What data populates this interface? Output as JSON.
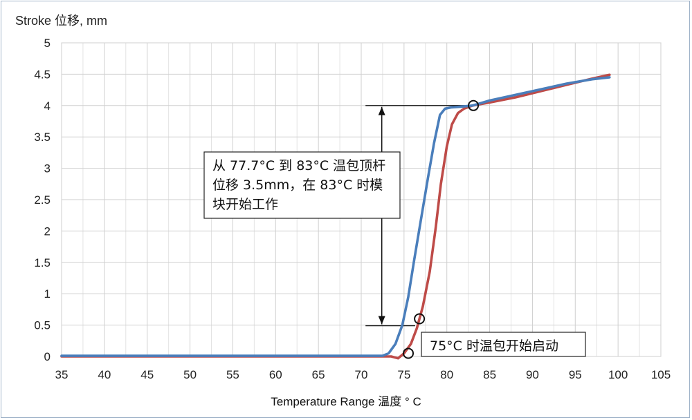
{
  "chart_data": {
    "type": "line",
    "ylabel": "Stroke 位移, mm",
    "xlabel": "Temperature Range  温度 ° C",
    "xlim": [
      35,
      105
    ],
    "ylim": [
      0,
      5
    ],
    "xticks": [
      "35",
      "40",
      "45",
      "50",
      "55",
      "60",
      "65",
      "70",
      "75",
      "80",
      "85",
      "90",
      "95",
      "100",
      "105"
    ],
    "yticks": [
      "0",
      "0.5",
      "1",
      "1.5",
      "2",
      "2.5",
      "3",
      "3.5",
      "4",
      "4.5",
      "5"
    ],
    "grid": true,
    "colors": {
      "blue": "#4a7ebb",
      "red": "#be4b48"
    },
    "series": [
      {
        "color": "#4a7ebb",
        "x": [
          35,
          72.5,
          73.2,
          74,
          74.8,
          75.5,
          76.2,
          77,
          77.8,
          78.5,
          79.2,
          79.8,
          80.5,
          81.5,
          83,
          85,
          88,
          91,
          94,
          97,
          99
        ],
        "y": [
          0.01,
          0.01,
          0.05,
          0.2,
          0.5,
          0.95,
          1.55,
          2.2,
          2.85,
          3.4,
          3.85,
          3.95,
          3.97,
          3.98,
          4.0,
          4.08,
          4.17,
          4.26,
          4.35,
          4.42,
          4.45
        ]
      },
      {
        "color": "#be4b48",
        "x": [
          35,
          73.5,
          74.3,
          75,
          75.8,
          76.5,
          77.2,
          78,
          78.7,
          79.3,
          80,
          80.6,
          81.3,
          82,
          83,
          85,
          88,
          91,
          94,
          97,
          99
        ],
        "y": [
          0.0,
          0.0,
          -0.03,
          0.05,
          0.2,
          0.45,
          0.8,
          1.35,
          2.05,
          2.75,
          3.35,
          3.7,
          3.88,
          3.95,
          4.0,
          4.05,
          4.13,
          4.23,
          4.33,
          4.43,
          4.49
        ]
      }
    ],
    "markers": [
      {
        "x": 75.5,
        "y": 0.05
      },
      {
        "x": 76.8,
        "y": 0.6
      },
      {
        "x": 83.1,
        "y": 4.0
      }
    ],
    "annotations": [
      {
        "lines": [
          "从 77.7°C 到 83°C 温包顶杆",
          "位移 3.5mm，在 83°C 时模",
          "块开始工作"
        ]
      },
      {
        "lines": [
          "75°C 时温包开始启动"
        ]
      }
    ],
    "reference_levels": [
      4.0,
      0.6
    ]
  }
}
